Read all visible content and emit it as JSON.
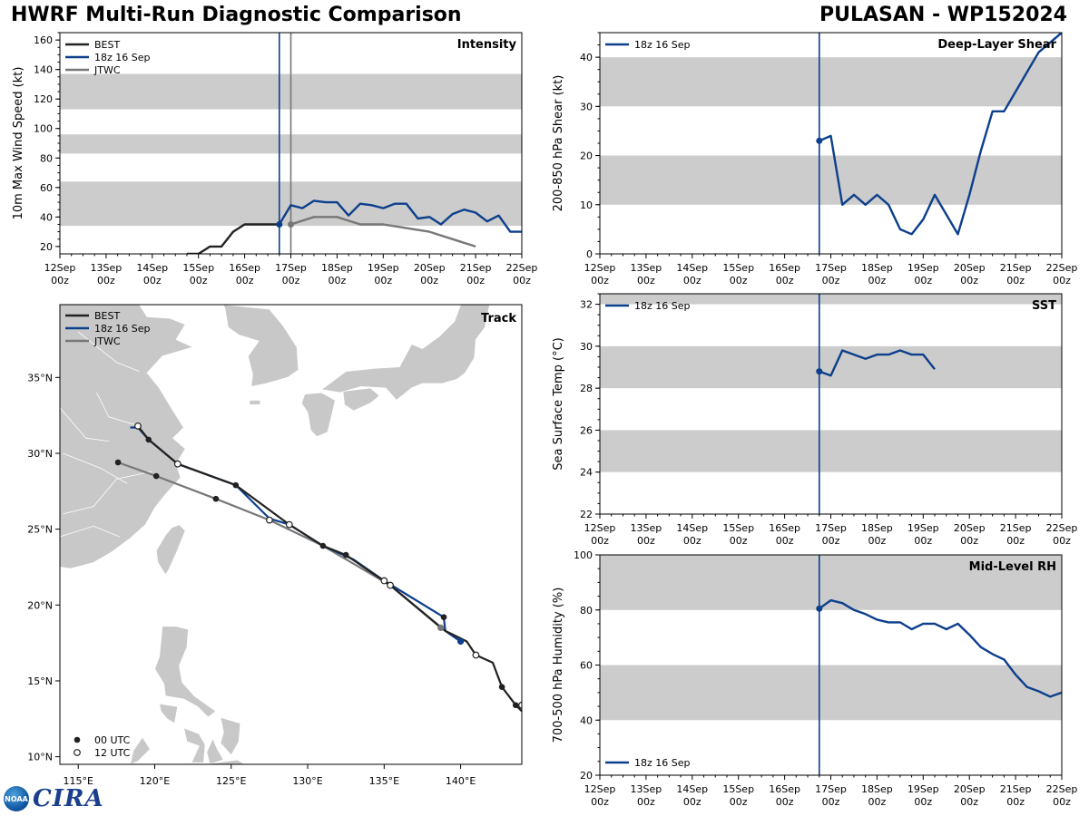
{
  "header": {
    "title": "HWRF Multi-Run Diagnostic Comparison",
    "storm": "PULASAN - WP152024"
  },
  "logo": {
    "noaa_text": "NOAA",
    "text": "CIRA"
  },
  "colors": {
    "best": "#222222",
    "run": "#0c3f8c",
    "jtwc": "#777777",
    "band": "#cccccc",
    "land": "#c8c8c8"
  },
  "time_ticks": [
    "12Sep\n00z",
    "13Sep\n00z",
    "14Sep\n00z",
    "15Sep\n00z",
    "16Sep\n00z",
    "17Sep\n00z",
    "18Sep\n00z",
    "19Sep\n00z",
    "20Sep\n00z",
    "21Sep\n00z",
    "22Sep\n00z"
  ],
  "chart_data": [
    {
      "id": "intensity",
      "type": "line",
      "title": "Intensity",
      "ylabel": "10m Max Wind Speed (kt)",
      "xlim": [
        0,
        10
      ],
      "ylim": [
        15,
        165
      ],
      "yticks": [
        20,
        40,
        60,
        80,
        100,
        120,
        140,
        160
      ],
      "bands": [
        [
          34,
          64
        ],
        [
          83,
          96
        ],
        [
          113,
          137
        ]
      ],
      "vlines": [
        {
          "x": 4.75,
          "color": "run"
        },
        {
          "x": 5.0,
          "color": "jtwc"
        }
      ],
      "legend": [
        "BEST",
        "18z 16 Sep",
        "JTWC"
      ],
      "series": [
        {
          "name": "BEST",
          "color": "best",
          "x": [
            2.75,
            3.0,
            3.25,
            3.5,
            3.75,
            4.0,
            4.25,
            4.5,
            4.75
          ],
          "y": [
            15,
            15,
            20,
            20,
            30,
            35,
            35,
            35,
            35
          ]
        },
        {
          "name": "18z 16 Sep",
          "color": "run",
          "marker": 4.75,
          "x": [
            4.75,
            5.0,
            5.25,
            5.5,
            5.75,
            6.0,
            6.25,
            6.5,
            6.75,
            7.0,
            7.25,
            7.5,
            7.75,
            8.0,
            8.25,
            8.5,
            8.75,
            9.0,
            9.25,
            9.5,
            9.75,
            10.0
          ],
          "y": [
            35,
            48,
            46,
            51,
            50,
            50,
            41,
            49,
            48,
            46,
            49,
            49,
            39,
            40,
            35,
            42,
            45,
            43,
            37,
            41,
            30,
            30
          ]
        },
        {
          "name": "JTWC",
          "color": "jtwc",
          "marker": 5.0,
          "x": [
            5.0,
            5.5,
            6.0,
            6.5,
            7.0,
            8.0,
            9.0
          ],
          "y": [
            35,
            40,
            40,
            35,
            35,
            30,
            20
          ]
        }
      ]
    },
    {
      "id": "shear",
      "type": "line",
      "title": "Deep-Layer Shear",
      "ylabel": "200-850 hPa Shear (kt)",
      "xlim": [
        0,
        10
      ],
      "ylim": [
        0,
        45
      ],
      "yticks": [
        0,
        10,
        20,
        30,
        40
      ],
      "bands": [
        [
          10,
          20
        ],
        [
          30,
          40
        ]
      ],
      "vlines": [
        {
          "x": 4.75,
          "color": "run"
        }
      ],
      "legend": [
        "18z 16 Sep"
      ],
      "series": [
        {
          "name": "18z 16 Sep",
          "color": "run",
          "marker": 4.75,
          "x": [
            4.75,
            5.0,
            5.25,
            5.5,
            5.75,
            6.0,
            6.25,
            6.5,
            6.75,
            7.0,
            7.25,
            7.5,
            7.75,
            8.0,
            8.25,
            8.5,
            8.75,
            9.0,
            9.25,
            9.5,
            9.75,
            10.0
          ],
          "y": [
            23,
            24,
            10,
            12,
            10,
            12,
            10,
            5,
            4,
            7,
            12,
            8,
            4,
            12,
            21,
            29,
            29,
            33,
            37,
            41,
            43,
            45
          ]
        }
      ]
    },
    {
      "id": "sst",
      "type": "line",
      "title": "SST",
      "ylabel": "Sea Surface Temp (°C)",
      "xlim": [
        0,
        10
      ],
      "ylim": [
        22,
        32.5
      ],
      "yticks": [
        22,
        24,
        26,
        28,
        30,
        32
      ],
      "bands": [
        [
          24,
          26
        ],
        [
          28,
          30
        ],
        [
          32,
          32.5
        ]
      ],
      "vlines": [
        {
          "x": 4.75,
          "color": "run"
        }
      ],
      "legend": [
        "18z 16 Sep"
      ],
      "series": [
        {
          "name": "18z 16 Sep",
          "color": "run",
          "marker": 4.75,
          "x": [
            4.75,
            5.0,
            5.25,
            5.5,
            5.75,
            6.0,
            6.25,
            6.5,
            6.75,
            7.0,
            7.25
          ],
          "y": [
            28.8,
            28.6,
            29.8,
            29.6,
            29.4,
            29.6,
            29.6,
            29.8,
            29.6,
            29.6,
            28.9
          ]
        }
      ]
    },
    {
      "id": "rh",
      "type": "line",
      "title": "Mid-Level RH",
      "ylabel": "700-500 hPa Humidity (%)",
      "xlim": [
        0,
        10
      ],
      "ylim": [
        20,
        100
      ],
      "yticks": [
        20,
        40,
        60,
        80,
        100
      ],
      "bands": [
        [
          40,
          60
        ],
        [
          80,
          100
        ]
      ],
      "vlines": [
        {
          "x": 4.75,
          "color": "run"
        }
      ],
      "legend": [
        "18z 16 Sep"
      ],
      "series": [
        {
          "name": "18z 16 Sep",
          "color": "run",
          "marker": 4.75,
          "x": [
            4.75,
            5.0,
            5.25,
            5.5,
            5.75,
            6.0,
            6.25,
            6.5,
            6.75,
            7.0,
            7.25,
            7.5,
            7.75,
            8.0,
            8.25,
            8.5,
            8.75,
            9.0,
            9.25,
            9.5,
            9.75,
            10.0
          ],
          "y": [
            80.5,
            83.5,
            82.5,
            80,
            78.5,
            76.5,
            75.5,
            75.5,
            73,
            75,
            75,
            73,
            75,
            71,
            66.5,
            64,
            62,
            56.5,
            52,
            50.5,
            48.5,
            50
          ]
        }
      ]
    },
    {
      "id": "track",
      "type": "scatter",
      "title": "Track",
      "xlim": [
        113.8,
        144
      ],
      "ylim": [
        9.5,
        39.8
      ],
      "xticks": [
        115,
        120,
        125,
        130,
        135,
        140
      ],
      "xtick_labels": [
        "115°E",
        "120°E",
        "125°E",
        "130°E",
        "135°E",
        "140°E"
      ],
      "yticks": [
        10,
        15,
        20,
        25,
        30,
        35
      ],
      "ytick_labels": [
        "10°N",
        "15°N",
        "20°N",
        "25°N",
        "30°N",
        "35°N"
      ],
      "legend": [
        "BEST",
        "18z 16 Sep",
        "JTWC"
      ],
      "marker_legend": [
        "00 UTC",
        "12 UTC"
      ],
      "series": [
        {
          "name": "BEST",
          "color": "best",
          "lon": [
            144.0,
            143.6,
            142.7,
            142.1,
            141.0,
            140.4,
            140.0,
            139.0,
            135.4,
            132.5,
            131.0,
            128.8,
            125.3,
            121.5,
            119.6,
            118.9,
            118.7
          ],
          "lat": [
            13.0,
            13.4,
            14.6,
            16.2,
            16.7,
            17.6,
            17.8,
            18.3,
            21.3,
            23.3,
            23.9,
            25.3,
            27.9,
            29.3,
            30.9,
            31.8,
            31.8
          ]
        },
        {
          "name": "18z 16 Sep",
          "color": "run",
          "lon": [
            140.0,
            139.0,
            138.9,
            135.0,
            133.0,
            131.0,
            128.8,
            127.5,
            125.3,
            121.5,
            119.6,
            118.9,
            118.4
          ],
          "lat": [
            17.6,
            18.3,
            19.2,
            21.6,
            23.0,
            23.9,
            25.3,
            25.7,
            27.9,
            29.3,
            30.9,
            31.7,
            31.7
          ]
        },
        {
          "name": "JTWC",
          "color": "jtwc",
          "lon": [
            140.0,
            138.7,
            135.4,
            131.0,
            127.5,
            124.0,
            120.1,
            117.6
          ],
          "lat": [
            17.6,
            18.5,
            21.3,
            23.9,
            25.6,
            27.0,
            28.5,
            29.4
          ]
        }
      ],
      "points_00utc": [
        [
          143.6,
          13.4
        ],
        [
          142.7,
          14.6
        ],
        [
          141.0,
          16.7
        ],
        [
          138.9,
          19.2
        ],
        [
          132.5,
          23.3
        ],
        [
          131.0,
          23.9
        ],
        [
          125.3,
          27.9
        ],
        [
          119.6,
          30.9
        ],
        [
          124.0,
          27.0
        ],
        [
          120.1,
          28.5
        ],
        [
          117.6,
          29.4
        ]
      ],
      "points_12utc": [
        [
          144.0,
          13.4
        ],
        [
          141.0,
          16.7
        ],
        [
          135.4,
          21.3
        ],
        [
          135.0,
          21.6
        ],
        [
          128.8,
          25.3
        ],
        [
          127.5,
          25.6
        ],
        [
          121.5,
          29.3
        ],
        [
          118.9,
          31.8
        ]
      ],
      "points_current": [
        [
          140.0,
          17.6,
          "run"
        ],
        [
          138.7,
          18.5,
          "jtwc"
        ]
      ]
    }
  ]
}
